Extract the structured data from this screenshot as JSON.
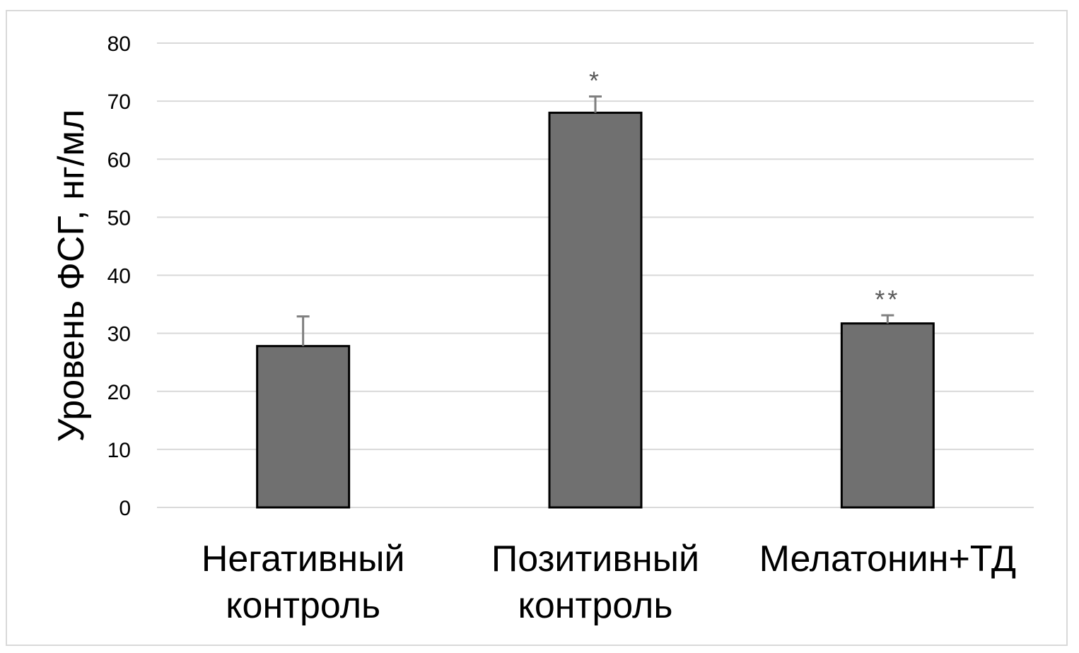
{
  "chart_data": {
    "type": "bar",
    "title": "",
    "xlabel": "",
    "ylabel": "Уровень ФСГ, нг/мл",
    "ylim": [
      0,
      80
    ],
    "yticks": [
      0,
      10,
      20,
      30,
      40,
      50,
      60,
      70,
      80
    ],
    "grid": true,
    "legend": "none",
    "categories": [
      [
        "Негативный",
        "контроль"
      ],
      [
        "Позитивный",
        "контроль"
      ],
      [
        "Мелатонин+ТД"
      ]
    ],
    "values": [
      27.8,
      68.0,
      31.7
    ],
    "error_upper": [
      5.1,
      2.8,
      1.4
    ],
    "significance": [
      "",
      "*",
      "**"
    ],
    "colors": {
      "bar_fill": "#707070",
      "bar_stroke": "#000000",
      "error_bar": "#7f7f7f",
      "grid": "#d9d9d9",
      "significance": "#595959"
    }
  }
}
